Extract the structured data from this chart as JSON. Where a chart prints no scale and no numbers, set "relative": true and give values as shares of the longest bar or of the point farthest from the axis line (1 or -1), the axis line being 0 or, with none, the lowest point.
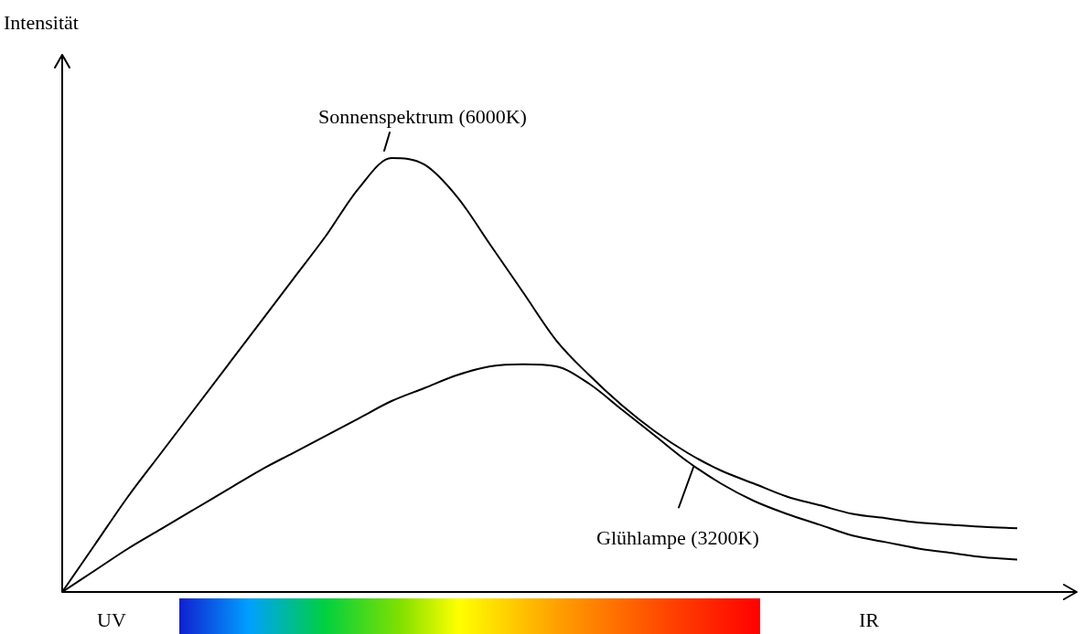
{
  "chart_data": {
    "type": "line",
    "relative": true,
    "marker": "none",
    "line_style": "solid",
    "categories": [
      null,
      null,
      null,
      null,
      null,
      null,
      null,
      null,
      null,
      null,
      null,
      null,
      null,
      null,
      null,
      null,
      null,
      null,
      null,
      null,
      null,
      null,
      null,
      null,
      null,
      null,
      null,
      null,
      null,
      null,
      null
    ],
    "series": [
      {
        "name": "Sonnenspektrum (6000K)",
        "color": "#000000",
        "values": [
          0,
          0.11,
          0.22,
          0.32,
          0.42,
          0.52,
          0.62,
          0.72,
          0.82,
          0.93,
          1,
          0.985,
          0.91,
          0.8,
          0.69,
          0.58,
          0.5,
          0.43,
          0.37,
          0.32,
          0.28,
          0.25,
          0.22,
          0.2,
          0.18,
          0.17,
          0.16,
          0.155,
          0.15,
          0.147,
          null
        ]
      },
      {
        "name": "Glühlampe (3200K)",
        "color": "#000000",
        "values": [
          0,
          0.05,
          0.1,
          0.145,
          0.19,
          0.235,
          0.28,
          0.32,
          0.36,
          0.4,
          0.44,
          0.47,
          0.5,
          0.52,
          0.525,
          0.52,
          0.48,
          0.42,
          0.36,
          0.3,
          0.25,
          0.21,
          0.18,
          0.155,
          0.13,
          0.115,
          0.1,
          0.09,
          0.08,
          0.075,
          null
        ]
      }
    ],
    "annotations": [
      "Intensität",
      "UV",
      "IR"
    ]
  }
}
